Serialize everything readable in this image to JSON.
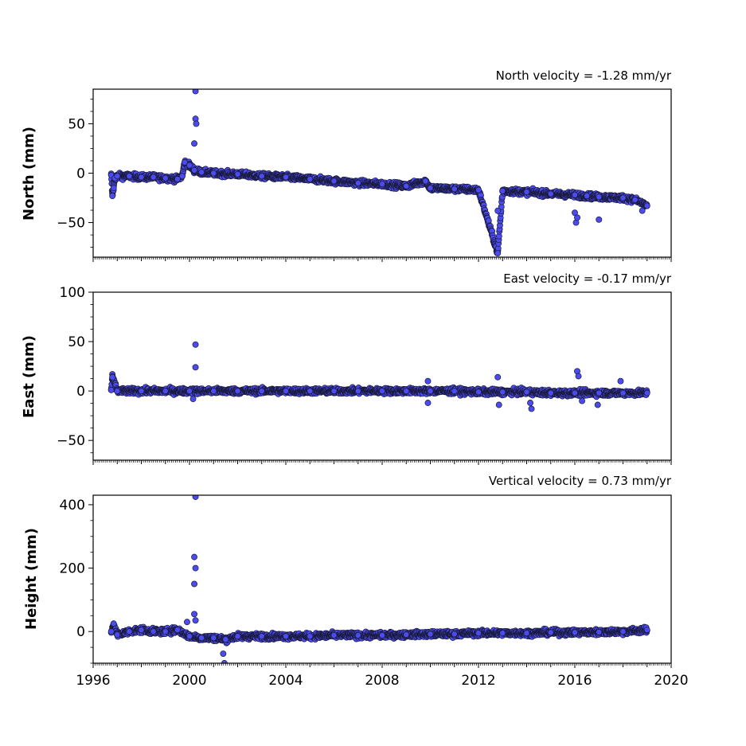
{
  "chart_data": [
    {
      "type": "scatter",
      "ylabel": "North (mm)",
      "annotation": "North velocity = -1.28 mm/yr",
      "xlim": [
        1996,
        2020
      ],
      "ylim": [
        -85,
        85
      ],
      "yticks": [
        -50,
        0,
        50
      ],
      "show_x_tick_labels": false,
      "color": "#4b4bf0",
      "edge_color": "#1a1a3a",
      "series": [
        {
          "x": [
            1996.75,
            1996.8,
            1996.85,
            1996.9,
            1997.0,
            1997.5,
            1998.0,
            1998.5,
            1999.0,
            1999.5,
            1999.7,
            1999.8,
            2000.0,
            2000.2,
            2000.5,
            2001.0,
            2002.0,
            2003.0,
            2004.0,
            2005.0,
            2006.0,
            2007.0,
            2008.0,
            2009.0,
            2009.8,
            2010.0,
            2011.0,
            2012.0,
            2012.8,
            2013.0,
            2014.0,
            2015.0,
            2016.0,
            2016.5,
            2017.0,
            2018.0,
            2018.5,
            2019.0
          ],
          "y": [
            -2,
            -23,
            -15,
            -5,
            -3,
            -3,
            -4,
            -4,
            -5,
            -6,
            -3,
            11,
            8,
            3,
            1,
            0,
            -1,
            -3,
            -4,
            -6,
            -8,
            -10,
            -11,
            -13,
            -8,
            -15,
            -16,
            -17,
            -81,
            -18,
            -19,
            -21,
            -22,
            -23,
            -24,
            -25,
            -27,
            -33
          ]
        }
      ],
      "outliers": [
        {
          "x": 2000.25,
          "y": 83
        },
        {
          "x": 2000.25,
          "y": 55
        },
        {
          "x": 2000.28,
          "y": 50
        },
        {
          "x": 2000.2,
          "y": 30
        },
        {
          "x": 2016.05,
          "y": -50
        },
        {
          "x": 2016.1,
          "y": -45
        },
        {
          "x": 2016.0,
          "y": -40
        },
        {
          "x": 2017.0,
          "y": -47
        },
        {
          "x": 2012.8,
          "y": -38
        },
        {
          "x": 2018.8,
          "y": -38
        }
      ]
    },
    {
      "type": "scatter",
      "ylabel": "East (mm)",
      "annotation": "East velocity = -0.17 mm/yr",
      "xlim": [
        1996,
        2020
      ],
      "ylim": [
        -70,
        100
      ],
      "yticks": [
        -50,
        0,
        50,
        100
      ],
      "show_x_tick_labels": false,
      "color": "#4b4bf0",
      "edge_color": "#1a1a3a",
      "series": [
        {
          "x": [
            1996.75,
            1996.8,
            1997.0,
            1998.0,
            1999.0,
            2000.0,
            2001.0,
            2002.0,
            2003.0,
            2004.0,
            2005.0,
            2006.0,
            2007.0,
            2008.0,
            2009.0,
            2010.0,
            2011.0,
            2012.0,
            2013.0,
            2014.0,
            2015.0,
            2016.0,
            2017.0,
            2018.0,
            2019.0
          ],
          "y": [
            1,
            14,
            0,
            0,
            0,
            0,
            0,
            0,
            0,
            0,
            0,
            0,
            0,
            0,
            0,
            0,
            0,
            -1,
            -1,
            -1,
            -2,
            -2,
            -2,
            -2,
            -2
          ]
        }
      ],
      "outliers": [
        {
          "x": 2000.25,
          "y": 47
        },
        {
          "x": 2000.25,
          "y": 24
        },
        {
          "x": 2000.15,
          "y": -8
        },
        {
          "x": 2009.9,
          "y": 10
        },
        {
          "x": 2009.9,
          "y": -12
        },
        {
          "x": 2012.8,
          "y": 14
        },
        {
          "x": 2012.85,
          "y": -14
        },
        {
          "x": 2014.2,
          "y": -18
        },
        {
          "x": 2014.15,
          "y": -12
        },
        {
          "x": 2016.1,
          "y": 20
        },
        {
          "x": 2016.15,
          "y": 15
        },
        {
          "x": 2016.3,
          "y": -10
        },
        {
          "x": 2016.95,
          "y": -14
        },
        {
          "x": 2017.9,
          "y": 10
        }
      ]
    },
    {
      "type": "scatter",
      "ylabel": "Height (mm)",
      "annotation": "Vertical velocity = 0.73 mm/yr",
      "xlim": [
        1996,
        2020
      ],
      "ylim": [
        -100,
        430
      ],
      "yticks": [
        0,
        200,
        400
      ],
      "xticks": [
        1996,
        2000,
        2004,
        2008,
        2012,
        2016,
        2020
      ],
      "show_x_tick_labels": true,
      "color": "#4b4bf0",
      "edge_color": "#1a1a3a",
      "series": [
        {
          "x": [
            1996.75,
            1996.85,
            1997.0,
            1997.5,
            1998.0,
            1998.5,
            1999.0,
            1999.5,
            2000.0,
            2000.5,
            2001.0,
            2001.5,
            2002.0,
            2003.0,
            2004.0,
            2005.0,
            2006.0,
            2007.0,
            2008.0,
            2009.0,
            2010.0,
            2011.0,
            2012.0,
            2013.0,
            2014.0,
            2015.0,
            2016.0,
            2017.0,
            2018.0,
            2019.0
          ],
          "y": [
            0,
            25,
            -10,
            0,
            5,
            0,
            0,
            5,
            -15,
            -20,
            -20,
            -25,
            -15,
            -15,
            -15,
            -15,
            -12,
            -12,
            -12,
            -10,
            -8,
            -8,
            -5,
            -5,
            -5,
            -3,
            -3,
            -2,
            0,
            5
          ]
        }
      ],
      "outliers": [
        {
          "x": 2000.25,
          "y": 425
        },
        {
          "x": 2000.2,
          "y": 235
        },
        {
          "x": 2000.25,
          "y": 200
        },
        {
          "x": 2000.2,
          "y": 150
        },
        {
          "x": 2000.2,
          "y": 55
        },
        {
          "x": 2000.25,
          "y": 35
        },
        {
          "x": 1999.9,
          "y": 30
        },
        {
          "x": 2001.4,
          "y": -70
        },
        {
          "x": 2001.45,
          "y": -100
        }
      ]
    }
  ]
}
